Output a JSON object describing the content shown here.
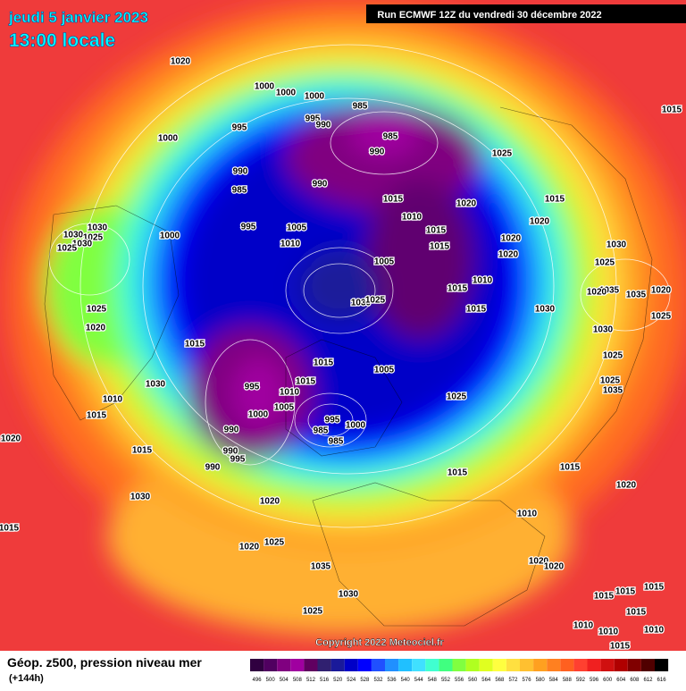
{
  "header": {
    "date": "jeudi 5 janvier 2023",
    "time": "13:00 locale",
    "run": "Run ECMWF 12Z du vendredi 30 décembre 2022"
  },
  "copyright": "Copyright 2022 Meteociel.fr",
  "footer": {
    "title": "Géop. z500, pression niveau mer",
    "lead": "(+144h)"
  },
  "colorbar": {
    "ticks": [
      496,
      500,
      504,
      508,
      512,
      516,
      520,
      524,
      528,
      532,
      536,
      540,
      544,
      548,
      552,
      556,
      560,
      564,
      568,
      572,
      576,
      580,
      584,
      588,
      592,
      596,
      600,
      604,
      608,
      612,
      616
    ],
    "colors": [
      "#300040",
      "#500060",
      "#800080",
      "#a000a0",
      "#600060",
      "#302070",
      "#1a1a9a",
      "#0000c8",
      "#0000ff",
      "#2050ff",
      "#2090ff",
      "#20c0ff",
      "#40e0ff",
      "#40ffd0",
      "#40ff80",
      "#80ff40",
      "#b0ff20",
      "#e0ff20",
      "#ffff40",
      "#ffe040",
      "#ffc030",
      "#ffa020",
      "#ff8020",
      "#ff6020",
      "#ff4030",
      "#f02020",
      "#d01010",
      "#b00000",
      "#800000",
      "#500000",
      "#000000"
    ]
  },
  "isobar_labels": [
    1020,
    1000,
    1000,
    1000,
    985,
    995,
    990,
    985,
    990,
    995,
    1000,
    1025,
    1015,
    990,
    985,
    990,
    1015,
    1020,
    1015,
    1010,
    1015,
    1020,
    1020,
    1015,
    1020,
    995,
    1005,
    1010,
    1000,
    1030,
    1030,
    1025,
    1030,
    1025,
    1005,
    1030,
    1025,
    1010,
    1015,
    1035,
    1035,
    1020,
    1020,
    1030,
    1025,
    1030,
    1015,
    1025,
    1025,
    1020,
    1030,
    1015,
    1025,
    1015,
    1005,
    1015,
    995,
    1010,
    1030,
    1025,
    1035,
    1010,
    1000,
    1005,
    1025,
    995,
    1000,
    985,
    990,
    985,
    1015,
    1015,
    990,
    995,
    990,
    1015,
    1015,
    1020,
    1020,
    1030,
    1020,
    1010,
    1015,
    1025,
    1020,
    1020,
    1020,
    1035,
    1030,
    1015,
    1015,
    1015,
    1015,
    1025,
    1010,
    1010,
    1010,
    1015
  ]
}
